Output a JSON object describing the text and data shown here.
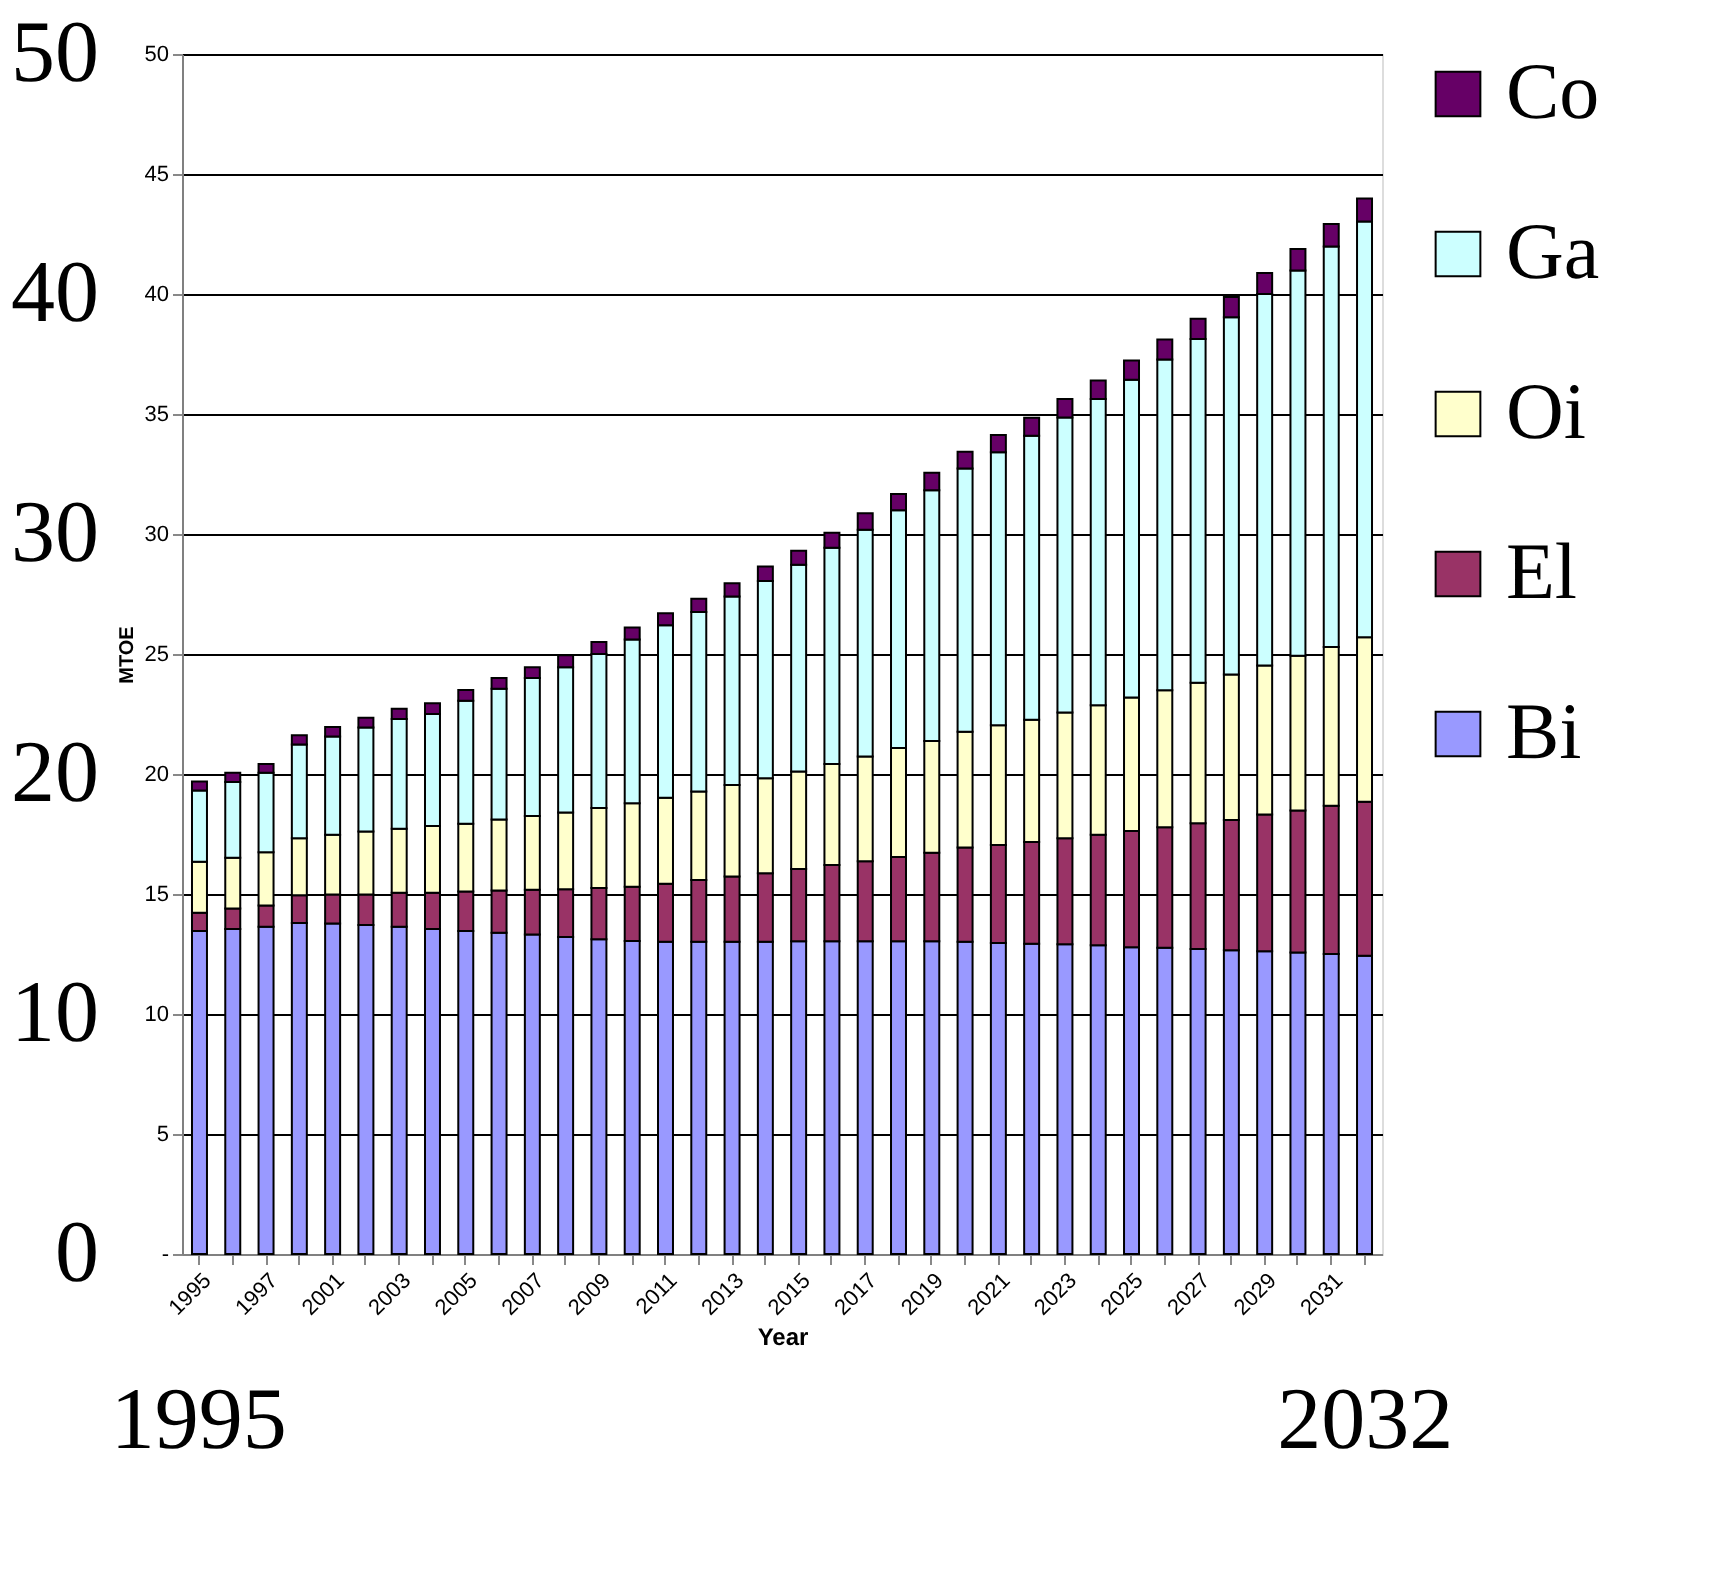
{
  "chart_data": {
    "type": "bar",
    "stacked": true,
    "xlabel": "Year",
    "ylabel": "MTOE",
    "categories": [
      "1995",
      null,
      "1997",
      null,
      "2001",
      null,
      "2003",
      null,
      "2005",
      null,
      "2007",
      null,
      "2009",
      null,
      "2011",
      null,
      "2013",
      null,
      "2015",
      null,
      "2017",
      null,
      "2019",
      null,
      "2021",
      null,
      "2023",
      null,
      "2025",
      null,
      "2027",
      null,
      "2029",
      null,
      "2031",
      null
    ],
    "series": [
      {
        "name": "Bi",
        "color": "#9999ff",
        "values": [
          13.46,
          13.54,
          13.64,
          13.79,
          13.77,
          13.71,
          13.64,
          13.54,
          13.46,
          13.39,
          13.31,
          13.21,
          13.11,
          13.04,
          13.01,
          13.01,
          13.01,
          13.01,
          13.03,
          13.03,
          13.03,
          13.03,
          13.03,
          13.01,
          12.96,
          12.93,
          12.91,
          12.86,
          12.78,
          12.76,
          12.71,
          12.66,
          12.61,
          12.56,
          12.5,
          12.43
        ]
      },
      {
        "name": "El",
        "color": "#993366",
        "values": [
          0.76,
          0.86,
          0.88,
          1.16,
          1.21,
          1.27,
          1.41,
          1.51,
          1.64,
          1.76,
          1.87,
          1.99,
          2.14,
          2.26,
          2.42,
          2.57,
          2.72,
          2.85,
          3.01,
          3.18,
          3.33,
          3.51,
          3.69,
          3.93,
          4.08,
          4.24,
          4.41,
          4.61,
          4.84,
          5.02,
          5.24,
          5.42,
          5.7,
          5.92,
          6.18,
          6.41
        ]
      },
      {
        "name": "Oi",
        "color": "#ffffcc",
        "values": [
          2.12,
          2.11,
          2.22,
          2.37,
          2.49,
          2.62,
          2.67,
          2.78,
          2.83,
          2.95,
          3.07,
          3.2,
          3.33,
          3.48,
          3.58,
          3.69,
          3.81,
          3.96,
          4.06,
          4.21,
          4.37,
          4.54,
          4.66,
          4.82,
          4.99,
          5.09,
          5.24,
          5.39,
          5.57,
          5.71,
          5.85,
          6.07,
          6.21,
          6.45,
          6.61,
          6.86
        ]
      },
      {
        "name": "Ga",
        "color": "#ccffff",
        "values": [
          2.97,
          3.16,
          3.31,
          3.91,
          4.09,
          4.34,
          4.57,
          4.67,
          5.12,
          5.45,
          5.75,
          6.05,
          6.42,
          6.82,
          7.19,
          7.48,
          7.86,
          8.22,
          8.62,
          9.01,
          9.45,
          9.91,
          10.44,
          10.97,
          11.38,
          11.83,
          12.29,
          12.77,
          13.24,
          13.78,
          14.32,
          14.88,
          15.48,
          16.05,
          16.69,
          17.32
        ]
      },
      {
        "name": "Co",
        "color": "#660066",
        "values": [
          0.38,
          0.38,
          0.37,
          0.38,
          0.4,
          0.4,
          0.43,
          0.45,
          0.45,
          0.45,
          0.45,
          0.5,
          0.5,
          0.5,
          0.5,
          0.55,
          0.55,
          0.61,
          0.58,
          0.62,
          0.68,
          0.68,
          0.73,
          0.7,
          0.72,
          0.75,
          0.77,
          0.77,
          0.8,
          0.83,
          0.85,
          0.85,
          0.87,
          0.9,
          0.94,
          0.96
        ]
      }
    ],
    "ylim": [
      0,
      50
    ],
    "yticks": [
      {
        "value": 0,
        "label": "-"
      },
      5,
      10,
      15,
      20,
      25,
      30,
      35,
      40,
      45,
      50
    ],
    "y2lim": [
      0,
      50
    ],
    "y2ticks": [
      0,
      10,
      20,
      30,
      40,
      50
    ],
    "grid": "y",
    "legend": "right",
    "annotations": [
      "1995",
      "2032"
    ]
  }
}
